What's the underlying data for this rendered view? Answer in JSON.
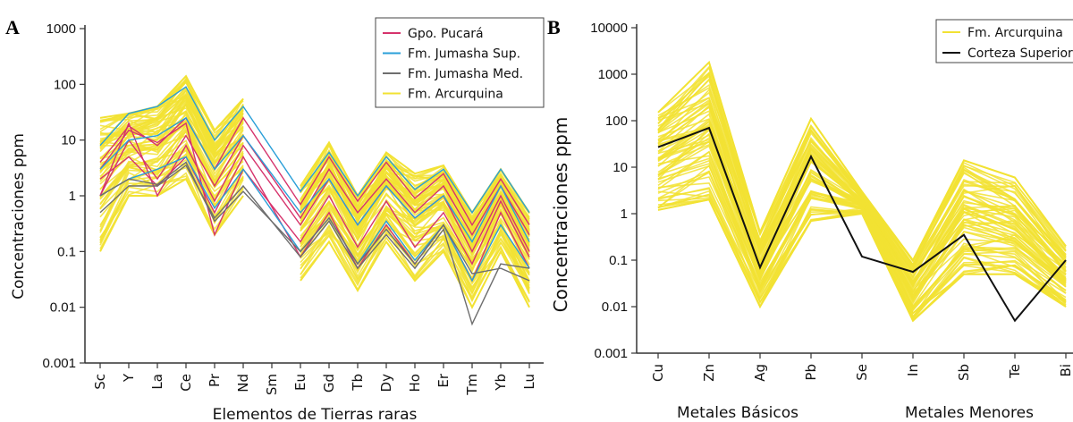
{
  "chart_data": [
    {
      "panel": "A",
      "type": "line",
      "ylabel": "Concentraciones ppm",
      "xlabel": "Elementos de Tierras raras",
      "yscale": "log",
      "ylim": [
        0.001,
        1000
      ],
      "ytick_labels": [
        "0.001",
        "0.01",
        "0.1",
        "1",
        "10",
        "100",
        "1000"
      ],
      "yticks": [
        0.001,
        0.01,
        0.1,
        1,
        10,
        100,
        1000
      ],
      "categories": [
        "Sc",
        "Y",
        "La",
        "Ce",
        "Pr",
        "Nd",
        "Sm",
        "Eu",
        "Gd",
        "Tb",
        "Dy",
        "Ho",
        "Er",
        "Tm",
        "Yb",
        "Lu"
      ],
      "legend": [
        "Gpo. Pucará",
        "Fm. Jumasha Sup.",
        "Fm. Jumasha Med.",
        "Fm. Arcurquina"
      ],
      "legend_position": "top-right",
      "series": [
        {
          "name": "Gpo. Pucará",
          "color": "#d6336c",
          "samples": [
            [
              4,
              18,
              8,
              25,
              3,
              25,
              null,
              0.7,
              5,
              0.8,
              4,
              0.9,
              2.5,
              0.3,
              2,
              0.3
            ],
            [
              1,
              20,
              1,
              8,
              0.8,
              8,
              null,
              0.3,
              2,
              0.3,
              1.5,
              0.4,
              1,
              0.1,
              1,
              0.1
            ],
            [
              2,
              5,
              1.5,
              5,
              0.5,
              5,
              null,
              0.08,
              0.5,
              0.05,
              0.3,
              0.06,
              0.3,
              0.03,
              0.5,
              0.05
            ],
            [
              1,
              10,
              2,
              12,
              1.5,
              12,
              null,
              0.4,
              3,
              0.5,
              2,
              0.5,
              1.5,
              0.2,
              1.5,
              0.2
            ],
            [
              3,
              15,
              9,
              20,
              0.2,
              3,
              null,
              0.15,
              1,
              0.12,
              0.8,
              0.12,
              0.5,
              0.06,
              0.8,
              0.08
            ]
          ]
        },
        {
          "name": "Fm. Jumasha Sup.",
          "color": "#2a9fd8",
          "samples": [
            [
              8,
              30,
              40,
              90,
              10,
              40,
              null,
              1.2,
              6,
              1,
              5,
              1.3,
              3,
              0.5,
              3,
              0.5
            ],
            [
              3,
              10,
              12,
              25,
              3,
              12,
              null,
              0.5,
              2,
              0.3,
              1.5,
              0.4,
              1,
              0.15,
              1.5,
              0.15
            ],
            [
              1,
              2,
              3,
              5,
              0.6,
              3,
              null,
              0.1,
              0.4,
              0.06,
              0.35,
              0.07,
              0.3,
              0.03,
              0.3,
              0.05
            ]
          ]
        },
        {
          "name": "Fm. Jumasha Med.",
          "color": "#6e6e6e",
          "samples": [
            [
              0.5,
              1.5,
              1.5,
              3.5,
              0.4,
              1.5,
              null,
              0.08,
              0.35,
              0.05,
              0.2,
              0.05,
              0.25,
              0.005,
              0.06,
              0.05
            ],
            [
              1,
              2,
              1.6,
              4,
              0.35,
              1.2,
              null,
              0.1,
              0.4,
              0.06,
              0.25,
              0.06,
              0.3,
              0.04,
              0.05,
              0.03
            ]
          ]
        },
        {
          "name": "Fm. Arcurquina",
          "color": "#f2e233",
          "envelope": {
            "low": [
              0.1,
              1,
              1,
              2,
              0.2,
              1,
              null,
              0.03,
              0.15,
              0.02,
              0.15,
              0.03,
              0.1,
              0.01,
              0.1,
              0.01
            ],
            "high": [
              25,
              30,
              40,
              140,
              15,
              55,
              null,
              1.5,
              9,
              1,
              6,
              2.5,
              3.5,
              0.5,
              3,
              0.5
            ]
          }
        }
      ]
    },
    {
      "panel": "B",
      "type": "line",
      "ylabel": "Concentraciones ppm",
      "yscale": "log",
      "ylim": [
        0.001,
        10000
      ],
      "ytick_labels": [
        "0.001",
        "0.01",
        "0.1",
        "1",
        "10",
        "100",
        "1000",
        "10000"
      ],
      "yticks": [
        0.001,
        0.01,
        0.1,
        1,
        10,
        100,
        1000,
        10000
      ],
      "categories": [
        "Cu",
        "Zn",
        "Ag",
        "Pb",
        "Se",
        "In",
        "Sb",
        "Te",
        "Bi"
      ],
      "category_groups": [
        "Metales Básicos",
        "Metales Menores"
      ],
      "legend": [
        "Fm. Arcurquina",
        "Corteza Superior"
      ],
      "legend_position": "top-right",
      "series": [
        {
          "name": "Corteza Superior",
          "color": "#111111",
          "values": [
            27,
            70,
            0.07,
            17,
            0.12,
            0.056,
            0.35,
            0.005,
            0.1
          ]
        },
        {
          "name": "Fm. Arcurquina",
          "color": "#f2e233",
          "envelope": {
            "low": [
              1.2,
              2,
              0.01,
              0.7,
              1,
              0.005,
              0.05,
              0.05,
              0.01
            ],
            "high": [
              150,
              1800,
              0.4,
              110,
              3,
              0.1,
              14,
              6,
              0.2
            ]
          }
        }
      ]
    }
  ]
}
